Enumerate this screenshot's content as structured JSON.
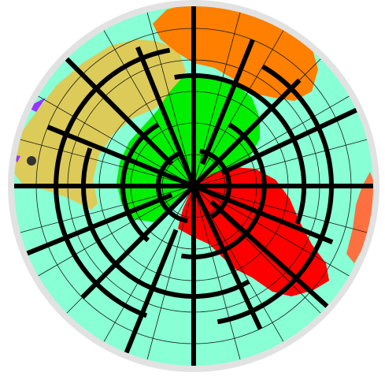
{
  "colors": {
    "background": "#ffffff",
    "rim": "#e2e2e2",
    "ocean": "#88ffd4",
    "graticule": "#1a1a1a",
    "grid_line": "#000000",
    "land_yellow": "#dccb58",
    "land_orange": "#ff7f00",
    "land_green": "#00ee00",
    "land_red": "#ff0000",
    "land_coral": "#ff7040",
    "land_purple": "#9933ff",
    "marker": "#333333"
  },
  "map": {
    "projection": "polar-azimuthal",
    "regions": [
      {
        "name": "yellow-landmass",
        "color_key": "land_yellow"
      },
      {
        "name": "orange-landmass",
        "color_key": "land_orange"
      },
      {
        "name": "green-landmass",
        "color_key": "land_green"
      },
      {
        "name": "red-landmass",
        "color_key": "land_red"
      },
      {
        "name": "coral-landmass",
        "color_key": "land_coral"
      },
      {
        "name": "purple-landmass",
        "color_key": "land_purple"
      }
    ],
    "marker": {
      "name": "city-marker-dot",
      "color_key": "marker"
    }
  }
}
